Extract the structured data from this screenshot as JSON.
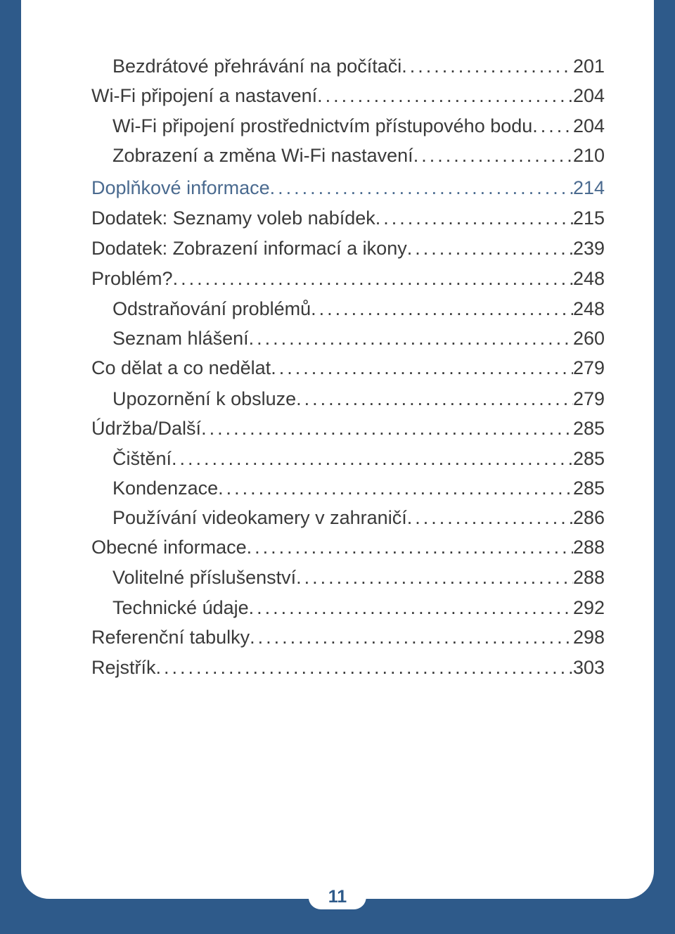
{
  "page": {
    "background_color": "#2e5a8a",
    "content_bg": "#ffffff",
    "text_color": "#3a3a3a",
    "heading_color": "#4a6a8f",
    "font_size": 27,
    "page_number": "11"
  },
  "toc": [
    {
      "level": 2,
      "label": "Bezdrátové přehrávání na počítači",
      "page": "201",
      "heading": false
    },
    {
      "level": 1,
      "label": "Wi-Fi připojení a nastavení",
      "page": "204",
      "heading": false
    },
    {
      "level": 2,
      "label": "Wi-Fi připojení prostřednictvím přístupového bodu",
      "page": "204",
      "heading": false
    },
    {
      "level": 2,
      "label": "Zobrazení a změna Wi-Fi nastavení",
      "page": "210",
      "heading": false
    },
    {
      "level": 0,
      "label": "Doplňkové informace",
      "page": " 214",
      "heading": true
    },
    {
      "level": 1,
      "label": "Dodatek: Seznamy voleb nabídek",
      "page": "215",
      "heading": false
    },
    {
      "level": 1,
      "label": "Dodatek: Zobrazení informací a ikony",
      "page": "239",
      "heading": false
    },
    {
      "level": 1,
      "label": "Problém?",
      "page": "248",
      "heading": false
    },
    {
      "level": 2,
      "label": "Odstraňování problémů",
      "page": "248",
      "heading": false
    },
    {
      "level": 2,
      "label": "Seznam hlášení",
      "page": "260",
      "heading": false
    },
    {
      "level": 1,
      "label": "Co dělat a co nedělat",
      "page": "279",
      "heading": false
    },
    {
      "level": 2,
      "label": "Upozornění k obsluze",
      "page": "279",
      "heading": false
    },
    {
      "level": 1,
      "label": "Údržba/Další",
      "page": "285",
      "heading": false
    },
    {
      "level": 2,
      "label": "Čištění",
      "page": "285",
      "heading": false
    },
    {
      "level": 2,
      "label": "Kondenzace",
      "page": "285",
      "heading": false
    },
    {
      "level": 2,
      "label": "Používání videokamery v zahraničí",
      "page": "286",
      "heading": false
    },
    {
      "level": 1,
      "label": "Obecné informace",
      "page": "288",
      "heading": false
    },
    {
      "level": 2,
      "label": "Volitelné příslušenství",
      "page": "288",
      "heading": false
    },
    {
      "level": 2,
      "label": "Technické údaje",
      "page": "292",
      "heading": false
    },
    {
      "level": 1,
      "label": "Referenční tabulky",
      "page": "298",
      "heading": false
    },
    {
      "level": 1,
      "label": "Rejstřík",
      "page": "303",
      "heading": false
    }
  ]
}
